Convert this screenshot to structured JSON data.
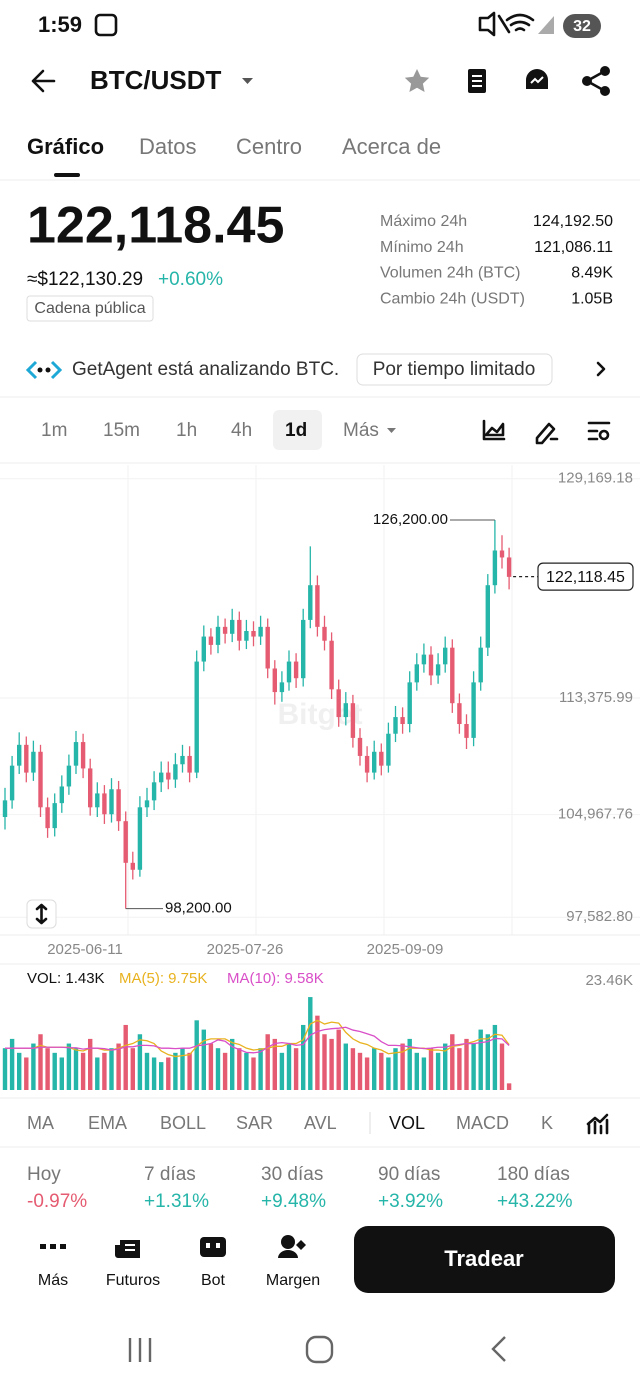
{
  "status_bar": {
    "time": "1:59",
    "battery": "32"
  },
  "header": {
    "pair": "BTC/USDT"
  },
  "tabs": [
    "Gráfico",
    "Datos",
    "Centro",
    "Acerca de"
  ],
  "price": {
    "last": "122,118.45",
    "fiat": "≈$122,130.29",
    "change": "+0.60%",
    "badge": "Cadena pública"
  },
  "stats": [
    {
      "label": "Máximo 24h",
      "value": "124,192.50"
    },
    {
      "label": "Mínimo 24h",
      "value": "121,086.11"
    },
    {
      "label": "Volumen 24h (BTC)",
      "value": "8.49K"
    },
    {
      "label": "Cambio 24h (USDT)",
      "value": "1.05B"
    }
  ],
  "banner": {
    "text": "GetAgent está analizando BTC.",
    "tag": "Por tiempo limitado"
  },
  "timeframes": [
    "1m",
    "15m",
    "1h",
    "4h",
    "1d",
    "Más"
  ],
  "chart_data": {
    "type": "candlestick",
    "watermark": "Bitget",
    "up_color": "#26b5a9",
    "down_color": "#e55b71",
    "ylim": [
      96300,
      130160
    ],
    "yticks": [
      {
        "value": 129169.18,
        "label": "129,169.18"
      },
      {
        "value": 113375.99,
        "label": "113,375.99"
      },
      {
        "value": 104967.76,
        "label": "104,967.76"
      },
      {
        "value": 97582.8,
        "label": "97,582.80"
      }
    ],
    "x_labels": [
      "2025-06-11",
      "2025-07-26",
      "2025-09-09"
    ],
    "high": {
      "value": 126200,
      "label": "126,200.00"
    },
    "low": {
      "value": 98200,
      "label": "98,200.00"
    },
    "last_price": {
      "value": 122118.45,
      "label": "122,118.45"
    },
    "candles": [
      [
        104800,
        106900,
        103900,
        106000
      ],
      [
        106000,
        109200,
        105400,
        108500
      ],
      [
        108500,
        110900,
        107900,
        110000
      ],
      [
        110000,
        110600,
        107300,
        108000
      ],
      [
        108000,
        110300,
        107400,
        109500
      ],
      [
        109500,
        110000,
        104800,
        105500
      ],
      [
        105500,
        106200,
        103300,
        104000
      ],
      [
        104000,
        106500,
        103400,
        105800
      ],
      [
        105800,
        107800,
        105100,
        107000
      ],
      [
        107000,
        109300,
        106400,
        108500
      ],
      [
        108500,
        111000,
        107900,
        110200
      ],
      [
        110200,
        110800,
        107600,
        108300
      ],
      [
        108300,
        109000,
        104900,
        105500
      ],
      [
        105500,
        107300,
        104800,
        106500
      ],
      [
        106500,
        107100,
        104300,
        105000
      ],
      [
        105000,
        107600,
        104400,
        106800
      ],
      [
        106800,
        107400,
        103800,
        104500
      ],
      [
        104500,
        105200,
        98200,
        101500
      ],
      [
        101500,
        102300,
        100300,
        101000
      ],
      [
        101000,
        106300,
        100500,
        105500
      ],
      [
        105500,
        106900,
        104800,
        106000
      ],
      [
        106000,
        108100,
        105300,
        107300
      ],
      [
        107300,
        108800,
        106600,
        108000
      ],
      [
        108000,
        108800,
        106800,
        107500
      ],
      [
        107500,
        109400,
        106900,
        108600
      ],
      [
        108600,
        110000,
        108000,
        109200
      ],
      [
        109200,
        109900,
        107300,
        108000
      ],
      [
        108000,
        116800,
        107600,
        116000
      ],
      [
        116000,
        118600,
        115300,
        117800
      ],
      [
        117800,
        118400,
        116500,
        117200
      ],
      [
        117200,
        119300,
        116600,
        118500
      ],
      [
        118500,
        119100,
        117300,
        118000
      ],
      [
        118000,
        119800,
        117400,
        119000
      ],
      [
        119000,
        119600,
        116800,
        117500
      ],
      [
        117500,
        119000,
        116900,
        118200
      ],
      [
        118200,
        118900,
        117100,
        117800
      ],
      [
        117800,
        119300,
        117200,
        118500
      ],
      [
        118500,
        119100,
        114800,
        115500
      ],
      [
        115500,
        116100,
        112900,
        113800
      ],
      [
        113800,
        115300,
        113100,
        114500
      ],
      [
        114500,
        116800,
        113900,
        116000
      ],
      [
        116000,
        116600,
        114100,
        114800
      ],
      [
        114800,
        119800,
        114200,
        119000
      ],
      [
        119000,
        124300,
        118400,
        121500
      ],
      [
        121500,
        122200,
        117800,
        118500
      ],
      [
        118500,
        119300,
        116800,
        117500
      ],
      [
        117500,
        118100,
        113300,
        114000
      ],
      [
        114000,
        114700,
        111300,
        112000
      ],
      [
        112000,
        113800,
        111400,
        113000
      ],
      [
        113000,
        113600,
        109800,
        110500
      ],
      [
        110500,
        111200,
        108500,
        109200
      ],
      [
        109200,
        109900,
        107300,
        108000
      ],
      [
        108000,
        110300,
        107500,
        109500
      ],
      [
        109500,
        110100,
        107800,
        108500
      ],
      [
        108500,
        111600,
        108000,
        110800
      ],
      [
        110800,
        112800,
        110200,
        112000
      ],
      [
        112000,
        112700,
        110800,
        111500
      ],
      [
        111500,
        115300,
        110900,
        114500
      ],
      [
        114500,
        116600,
        113900,
        115800
      ],
      [
        115800,
        117300,
        115200,
        116500
      ],
      [
        116500,
        117100,
        114300,
        115000
      ],
      [
        115000,
        116600,
        114400,
        115800
      ],
      [
        115800,
        117800,
        115200,
        117000
      ],
      [
        117000,
        117600,
        112300,
        113000
      ],
      [
        113000,
        113700,
        110800,
        111500
      ],
      [
        111500,
        112200,
        109700,
        110500
      ],
      [
        110500,
        115300,
        109900,
        114500
      ],
      [
        114500,
        117800,
        113900,
        117000
      ],
      [
        117000,
        122300,
        116400,
        121500
      ],
      [
        121500,
        126200,
        120900,
        124000
      ],
      [
        124000,
        125100,
        122700,
        123500
      ],
      [
        123500,
        124200,
        121200,
        122100
      ]
    ]
  },
  "volume_chart": {
    "type": "bar",
    "labels": {
      "vol": "VOL: 1.43K",
      "ma5": "MA(5): 9.75K",
      "ma10": "MA(10): 9.58K"
    },
    "ma5_color": "#e8b21f",
    "ma10_color": "#d94fc8",
    "ylim": [
      0,
      23460
    ],
    "yticks": [
      {
        "value": 23460,
        "label": "23.46K"
      }
    ],
    "values": [
      9000,
      11000,
      8000,
      7000,
      10000,
      12000,
      9000,
      8000,
      7000,
      10000,
      9000,
      8000,
      11000,
      7000,
      8000,
      9000,
      10000,
      14000,
      9000,
      12000,
      8000,
      7000,
      6000,
      7000,
      8000,
      9000,
      8000,
      15000,
      13000,
      10000,
      9000,
      8000,
      11000,
      9000,
      8000,
      7000,
      9000,
      12000,
      11000,
      8000,
      10000,
      9000,
      14000,
      20000,
      16000,
      12000,
      11000,
      13000,
      10000,
      9000,
      8000,
      7000,
      9000,
      8000,
      7000,
      9000,
      10000,
      11000,
      8000,
      7000,
      9000,
      8000,
      10000,
      12000,
      9000,
      11000,
      10000,
      13000,
      12000,
      14000,
      10000,
      1430
    ],
    "ma5": [
      9000,
      9000,
      9000,
      9000,
      9000,
      9600,
      9200,
      9200,
      9200,
      9200,
      8600,
      8400,
      9000,
      9000,
      8600,
      8600,
      9000,
      9600,
      10000,
      10800,
      10600,
      10000,
      8400,
      7600,
      7200,
      7400,
      7600,
      9400,
      10600,
      11000,
      11000,
      11000,
      10200,
      9800,
      9000,
      8600,
      8800,
      9000,
      9400,
      9400,
      10000,
      10000,
      10800,
      14200,
      15000,
      14200,
      14600,
      14400,
      12400,
      11000,
      10200,
      9800,
      9000,
      8600,
      7800,
      8000,
      8200,
      9000,
      9000,
      9000,
      8600,
      8600,
      8400,
      9400,
      9600,
      10000,
      10400,
      11000,
      11000,
      12000,
      11800,
      9750
    ],
    "ma10": [
      9000,
      9000,
      9000,
      9000,
      9000,
      9200,
      9200,
      9200,
      9200,
      9100,
      9100,
      8800,
      9000,
      9000,
      8900,
      8600,
      8800,
      9300,
      9300,
      9600,
      9600,
      9500,
      9000,
      9000,
      8900,
      9000,
      9000,
      9500,
      9700,
      10000,
      10800,
      10500,
      9300,
      8700,
      8100,
      8000,
      8200,
      9200,
      10000,
      10200,
      10000,
      9600,
      9800,
      11800,
      12600,
      13000,
      13200,
      13300,
      13500,
      12900,
      12600,
      12100,
      11600,
      10400,
      9600,
      9600,
      9500,
      9300,
      9100,
      8900,
      9000,
      9200,
      9200,
      9600,
      9800,
      10000,
      10000,
      10200,
      10400,
      11100,
      11000,
      9580
    ]
  },
  "indicators": [
    "MA",
    "EMA",
    "BOLL",
    "SAR",
    "AVL",
    "VOL",
    "MACD",
    "K"
  ],
  "performance": [
    {
      "period": "Hoy",
      "change": "-0.97%"
    },
    {
      "period": "7 días",
      "change": "+1.31%"
    },
    {
      "period": "30 días",
      "change": "+9.48%"
    },
    {
      "period": "90 días",
      "change": "+3.92%"
    },
    {
      "period": "180 días",
      "change": "+43.22%"
    }
  ],
  "bottom_nav": [
    "Más",
    "Futuros",
    "Bot",
    "Margen"
  ],
  "trade_button": "Tradear"
}
